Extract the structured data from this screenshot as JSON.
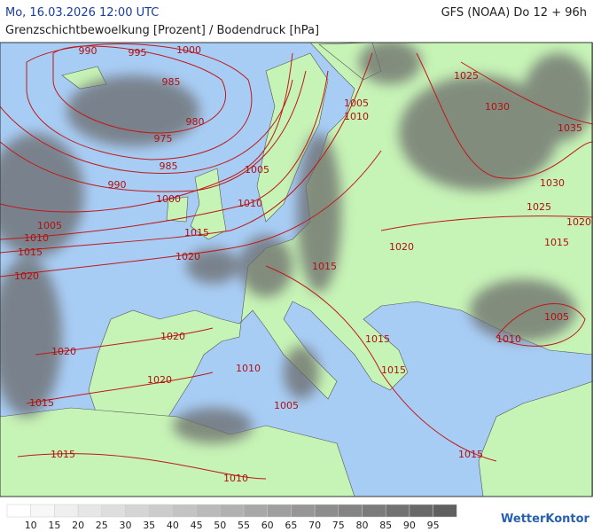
{
  "header": {
    "datetime": "Mo, 16.03.2026 12:00 UTC",
    "model": "GFS (NOAA) Do 12 + 96h",
    "title": "Grenzschichtbewoelkung [Prozent] / Bodendruck [hPa]"
  },
  "isobar_labels": [
    990,
    995,
    1000,
    985,
    980,
    975,
    985,
    990,
    1000,
    1005,
    1010,
    1015,
    1020,
    1010,
    1015,
    1020,
    1005,
    1005,
    1010,
    1025,
    1030,
    1035,
    1030,
    1025,
    1020,
    1015,
    1020,
    1015,
    1005,
    1010,
    1020,
    1015,
    1015,
    1020,
    1020,
    1010,
    1015,
    1005,
    1015,
    1015,
    1010
  ],
  "legend": {
    "ticks": [
      10,
      15,
      20,
      25,
      30,
      35,
      40,
      45,
      50,
      55,
      60,
      65,
      70,
      75,
      80,
      85,
      90,
      95
    ],
    "colors": [
      "#ffffff",
      "#f7f7f7",
      "#efefef",
      "#e6e6e6",
      "#dedede",
      "#d5d5d5",
      "#cccccc",
      "#c3c3c3",
      "#bababa",
      "#b1b1b1",
      "#a8a8a8",
      "#9f9f9f",
      "#969696",
      "#8d8d8d",
      "#848484",
      "#7b7b7b",
      "#727272",
      "#696969",
      "#606060"
    ]
  },
  "brand": "WetterKontor"
}
